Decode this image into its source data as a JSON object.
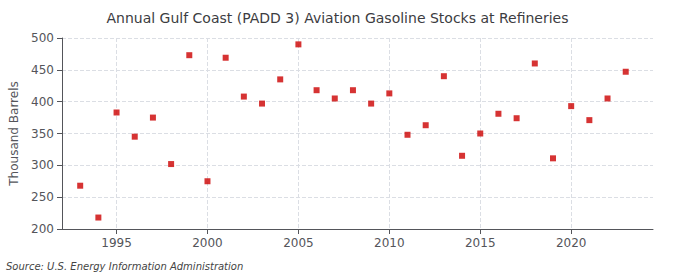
{
  "chart_data": {
    "type": "scatter",
    "title": "Annual Gulf Coast (PADD 3) Aviation Gasoline Stocks at Refineries",
    "ylabel": "Thousand Barrels",
    "annotation": "Source: U.S. Energy Information Administration",
    "x": [
      1993,
      1994,
      1995,
      1996,
      1997,
      1998,
      1999,
      2000,
      2001,
      2002,
      2003,
      2004,
      2005,
      2006,
      2007,
      2008,
      2009,
      2010,
      2011,
      2012,
      2013,
      2014,
      2015,
      2016,
      2017,
      2018,
      2019,
      2020,
      2021,
      2022,
      2023
    ],
    "values": [
      268,
      218,
      383,
      345,
      375,
      302,
      473,
      275,
      469,
      408,
      397,
      435,
      490,
      418,
      405,
      418,
      397,
      413,
      348,
      363,
      440,
      315,
      350,
      381,
      374,
      460,
      311,
      393,
      371,
      405,
      447
    ],
    "color": "#cc0000",
    "marker": "square",
    "xlim": [
      1992.0,
      2024.5
    ],
    "xticks": [
      1995,
      2000,
      2005,
      2010,
      2015,
      2020
    ],
    "ylim": [
      200,
      500
    ],
    "yticks": [
      200,
      250,
      300,
      350,
      400,
      450,
      500
    ],
    "grid": true
  }
}
